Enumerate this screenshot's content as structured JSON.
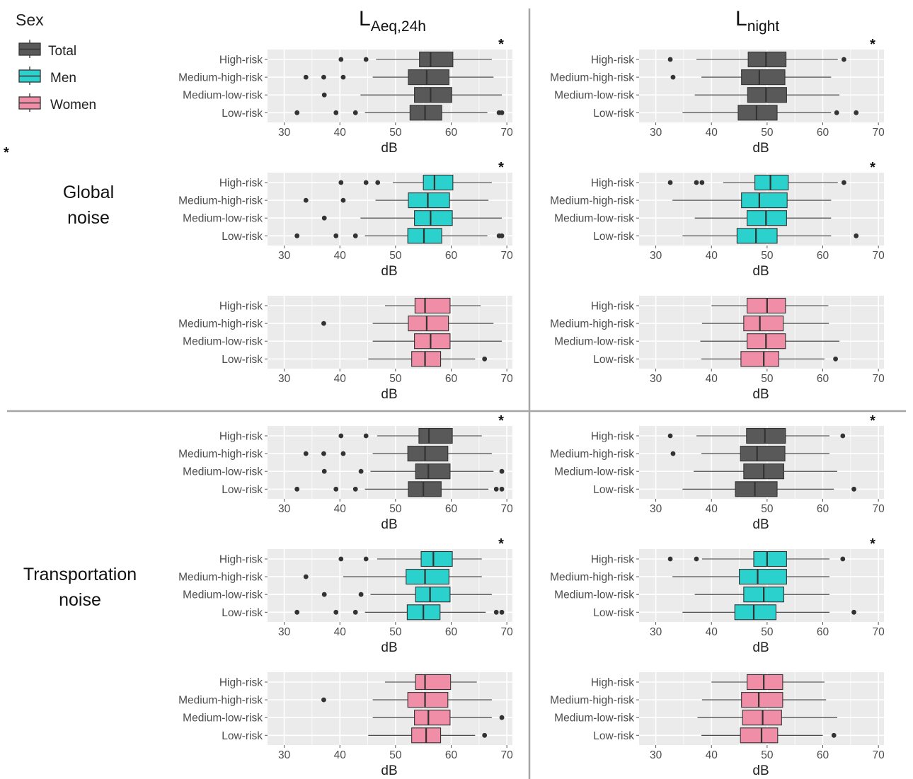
{
  "legend": {
    "title": "Sex",
    "items": [
      {
        "label": "Total",
        "color": "#595959"
      },
      {
        "label": "Men",
        "color": "#2bd1cc"
      },
      {
        "label": "Women",
        "color": "#f08ea8"
      }
    ]
  },
  "column_headers": [
    {
      "main": "L",
      "sub": "Aeq,24h"
    },
    {
      "main": "L",
      "sub": "night"
    }
  ],
  "row_headers": [
    {
      "line1": "Global",
      "line2": "noise"
    },
    {
      "line1": "Transportation",
      "line2": "noise"
    }
  ],
  "side_star": "*",
  "chart_data": {
    "type": "boxplot",
    "categories": [
      "High-risk",
      "Medium-high-risk",
      "Medium-low-risk",
      "Low-risk"
    ],
    "xlabel": "dB",
    "xlim": [
      27,
      71
    ],
    "xticks": [
      30,
      40,
      50,
      60,
      70
    ],
    "grid": true,
    "legend_position": "top-left",
    "panels": [
      {
        "id": "global-laeq-total",
        "noise": "Global noise",
        "metric": "LAeq,24h",
        "sex": "Total",
        "star": "*",
        "boxes": [
          {
            "min": 46.5,
            "q1": 54.3,
            "median": 56.3,
            "q3": 60.3,
            "max": 67.3,
            "outliers": [
              40.2,
              44.7
            ]
          },
          {
            "min": 45.9,
            "q1": 52.3,
            "median": 55.6,
            "q3": 59.6,
            "max": 67.6,
            "outliers": [
              33.9,
              37.1,
              40.6
            ]
          },
          {
            "min": 43.7,
            "q1": 53.4,
            "median": 56.3,
            "q3": 60.1,
            "max": 69.1,
            "outliers": [
              37.2
            ]
          },
          {
            "min": 44.5,
            "q1": 52.6,
            "median": 55.3,
            "q3": 58.3,
            "max": 66.5,
            "outliers": [
              32.3,
              39.3,
              42.8,
              68.6,
              69.1
            ]
          }
        ]
      },
      {
        "id": "global-lnight-total",
        "noise": "Global noise",
        "metric": "Lnight",
        "sex": "Total",
        "star": "*",
        "boxes": [
          {
            "min": 37.3,
            "q1": 46.6,
            "median": 49.8,
            "q3": 53.4,
            "max": 62.7,
            "outliers": [
              32.6,
              63.8
            ]
          },
          {
            "min": 38.2,
            "q1": 45.4,
            "median": 48.6,
            "q3": 53.2,
            "max": 61.5,
            "outliers": [
              33.1
            ]
          },
          {
            "min": 37.0,
            "q1": 46.5,
            "median": 49.8,
            "q3": 53.5,
            "max": 63.0,
            "outliers": []
          },
          {
            "min": 34.8,
            "q1": 44.8,
            "median": 48.1,
            "q3": 51.8,
            "max": 61.5,
            "outliers": [
              62.5,
              66.0
            ]
          }
        ]
      },
      {
        "id": "global-laeq-men",
        "noise": "Global noise",
        "metric": "LAeq,24h",
        "sex": "Men",
        "star": "*",
        "boxes": [
          {
            "min": 49.5,
            "q1": 55.0,
            "median": 57.0,
            "q3": 60.3,
            "max": 67.3,
            "outliers": [
              40.2,
              44.7,
              46.8
            ]
          },
          {
            "min": 46.4,
            "q1": 52.3,
            "median": 55.8,
            "q3": 59.7,
            "max": 66.7,
            "outliers": [
              33.9,
              40.6
            ]
          },
          {
            "min": 43.7,
            "q1": 53.4,
            "median": 56.3,
            "q3": 60.2,
            "max": 69.1,
            "outliers": [
              37.2
            ]
          },
          {
            "min": 44.5,
            "q1": 52.2,
            "median": 55.1,
            "q3": 58.3,
            "max": 66.5,
            "outliers": [
              32.3,
              39.3,
              42.8,
              68.6,
              69.1
            ]
          }
        ]
      },
      {
        "id": "global-lnight-men",
        "noise": "Global noise",
        "metric": "Lnight",
        "sex": "Men",
        "star": "*",
        "boxes": [
          {
            "min": 42.1,
            "q1": 47.8,
            "median": 50.6,
            "q3": 53.8,
            "max": 62.7,
            "outliers": [
              32.6,
              37.3,
              38.3,
              63.8
            ]
          },
          {
            "min": 33.0,
            "q1": 45.4,
            "median": 48.6,
            "q3": 53.6,
            "max": 61.5,
            "outliers": []
          },
          {
            "min": 37.0,
            "q1": 46.4,
            "median": 49.8,
            "q3": 53.5,
            "max": 61.5,
            "outliers": []
          },
          {
            "min": 34.8,
            "q1": 44.6,
            "median": 48.0,
            "q3": 51.8,
            "max": 61.5,
            "outliers": [
              66.0
            ]
          }
        ]
      },
      {
        "id": "global-laeq-women",
        "noise": "Global noise",
        "metric": "LAeq,24h",
        "sex": "Women",
        "star": "",
        "boxes": [
          {
            "min": 48.1,
            "q1": 53.5,
            "median": 55.3,
            "q3": 59.8,
            "max": 65.3,
            "outliers": []
          },
          {
            "min": 45.9,
            "q1": 52.3,
            "median": 55.6,
            "q3": 59.5,
            "max": 67.6,
            "outliers": [
              37.1
            ]
          },
          {
            "min": 45.9,
            "q1": 53.4,
            "median": 56.3,
            "q3": 59.8,
            "max": 69.1,
            "outliers": []
          },
          {
            "min": 45.1,
            "q1": 52.9,
            "median": 55.3,
            "q3": 58.1,
            "max": 64.3,
            "outliers": [
              66.0
            ]
          }
        ]
      },
      {
        "id": "global-lnight-women",
        "noise": "Global noise",
        "metric": "Lnight",
        "sex": "Women",
        "star": "",
        "boxes": [
          {
            "min": 40.0,
            "q1": 46.4,
            "median": 50.0,
            "q3": 53.3,
            "max": 61.0,
            "outliers": []
          },
          {
            "min": 38.3,
            "q1": 45.8,
            "median": 48.7,
            "q3": 52.9,
            "max": 61.1,
            "outliers": []
          },
          {
            "min": 38.0,
            "q1": 46.4,
            "median": 49.8,
            "q3": 53.3,
            "max": 63.0,
            "outliers": []
          },
          {
            "min": 38.2,
            "q1": 45.3,
            "median": 49.4,
            "q3": 52.1,
            "max": 60.3,
            "outliers": [
              62.3
            ]
          }
        ]
      },
      {
        "id": "transport-laeq-total",
        "noise": "Transportation noise",
        "metric": "LAeq,24h",
        "sex": "Total",
        "star": "*",
        "boxes": [
          {
            "min": 46.7,
            "q1": 54.2,
            "median": 56.0,
            "q3": 60.2,
            "max": 65.5,
            "outliers": [
              40.2,
              44.7
            ]
          },
          {
            "min": 45.9,
            "q1": 52.2,
            "median": 55.3,
            "q3": 59.4,
            "max": 67.3,
            "outliers": [
              33.9,
              37.1,
              40.6
            ]
          },
          {
            "min": 45.5,
            "q1": 53.6,
            "median": 55.9,
            "q3": 59.8,
            "max": 67.6,
            "outliers": [
              37.2,
              43.8,
              69.1
            ]
          },
          {
            "min": 44.5,
            "q1": 52.3,
            "median": 55.0,
            "q3": 58.2,
            "max": 66.7,
            "outliers": [
              32.3,
              39.3,
              42.8,
              68.1,
              69.1
            ]
          }
        ]
      },
      {
        "id": "transport-lnight-total",
        "noise": "Transportation noise",
        "metric": "Lnight",
        "sex": "Total",
        "star": "*",
        "boxes": [
          {
            "min": 37.3,
            "q1": 46.3,
            "median": 49.6,
            "q3": 53.3,
            "max": 61.2,
            "outliers": [
              32.6,
              63.6
            ]
          },
          {
            "min": 38.2,
            "q1": 45.2,
            "median": 48.2,
            "q3": 53.2,
            "max": 61.2,
            "outliers": [
              33.1
            ]
          },
          {
            "min": 36.8,
            "q1": 45.8,
            "median": 49.4,
            "q3": 53.0,
            "max": 62.6,
            "outliers": []
          },
          {
            "min": 34.8,
            "q1": 44.3,
            "median": 47.8,
            "q3": 51.8,
            "max": 62.0,
            "outliers": [
              65.6
            ]
          }
        ]
      },
      {
        "id": "transport-laeq-men",
        "noise": "Transportation noise",
        "metric": "LAeq,24h",
        "sex": "Men",
        "star": "*",
        "boxes": [
          {
            "min": 46.7,
            "q1": 54.6,
            "median": 56.8,
            "q3": 60.2,
            "max": 65.5,
            "outliers": [
              40.2,
              44.7
            ]
          },
          {
            "min": 40.6,
            "q1": 51.9,
            "median": 55.3,
            "q3": 59.6,
            "max": 65.5,
            "outliers": [
              33.9
            ]
          },
          {
            "min": 45.5,
            "q1": 53.6,
            "median": 56.2,
            "q3": 59.8,
            "max": 67.3,
            "outliers": [
              37.2,
              43.8
            ]
          },
          {
            "min": 44.5,
            "q1": 52.1,
            "median": 55.0,
            "q3": 58.0,
            "max": 66.2,
            "outliers": [
              32.3,
              39.3,
              42.8,
              68.1,
              69.1
            ]
          }
        ]
      },
      {
        "id": "transport-lnight-men",
        "noise": "Transportation noise",
        "metric": "Lnight",
        "sex": "Men",
        "star": "*",
        "boxes": [
          {
            "min": 38.3,
            "q1": 47.6,
            "median": 50.0,
            "q3": 53.5,
            "max": 61.2,
            "outliers": [
              32.6,
              37.3,
              63.6
            ]
          },
          {
            "min": 33.0,
            "q1": 45.0,
            "median": 48.3,
            "q3": 53.5,
            "max": 61.2,
            "outliers": []
          },
          {
            "min": 37.0,
            "q1": 45.8,
            "median": 49.4,
            "q3": 53.0,
            "max": 61.2,
            "outliers": []
          },
          {
            "min": 34.8,
            "q1": 44.2,
            "median": 47.6,
            "q3": 51.6,
            "max": 61.2,
            "outliers": [
              65.6
            ]
          }
        ]
      },
      {
        "id": "transport-laeq-women",
        "noise": "Transportation noise",
        "metric": "LAeq,24h",
        "sex": "Women",
        "star": "",
        "boxes": [
          {
            "min": 48.1,
            "q1": 53.6,
            "median": 55.3,
            "q3": 59.9,
            "max": 64.6,
            "outliers": []
          },
          {
            "min": 45.9,
            "q1": 52.2,
            "median": 55.3,
            "q3": 59.4,
            "max": 67.3,
            "outliers": [
              37.1
            ]
          },
          {
            "min": 45.9,
            "q1": 53.4,
            "median": 55.9,
            "q3": 59.8,
            "max": 67.3,
            "outliers": [
              69.1
            ]
          },
          {
            "min": 45.1,
            "q1": 52.9,
            "median": 55.5,
            "q3": 58.1,
            "max": 64.3,
            "outliers": [
              66.0
            ]
          }
        ]
      },
      {
        "id": "transport-lnight-women",
        "noise": "Transportation noise",
        "metric": "Lnight",
        "sex": "Women",
        "star": "",
        "boxes": [
          {
            "min": 40.0,
            "q1": 46.4,
            "median": 49.4,
            "q3": 52.8,
            "max": 60.3,
            "outliers": []
          },
          {
            "min": 38.3,
            "q1": 45.4,
            "median": 48.5,
            "q3": 52.8,
            "max": 60.6,
            "outliers": []
          },
          {
            "min": 37.5,
            "q1": 45.6,
            "median": 49.2,
            "q3": 52.6,
            "max": 62.6,
            "outliers": []
          },
          {
            "min": 38.2,
            "q1": 45.2,
            "median": 49.0,
            "q3": 51.9,
            "max": 60.0,
            "outliers": [
              62.0
            ]
          }
        ]
      }
    ]
  }
}
